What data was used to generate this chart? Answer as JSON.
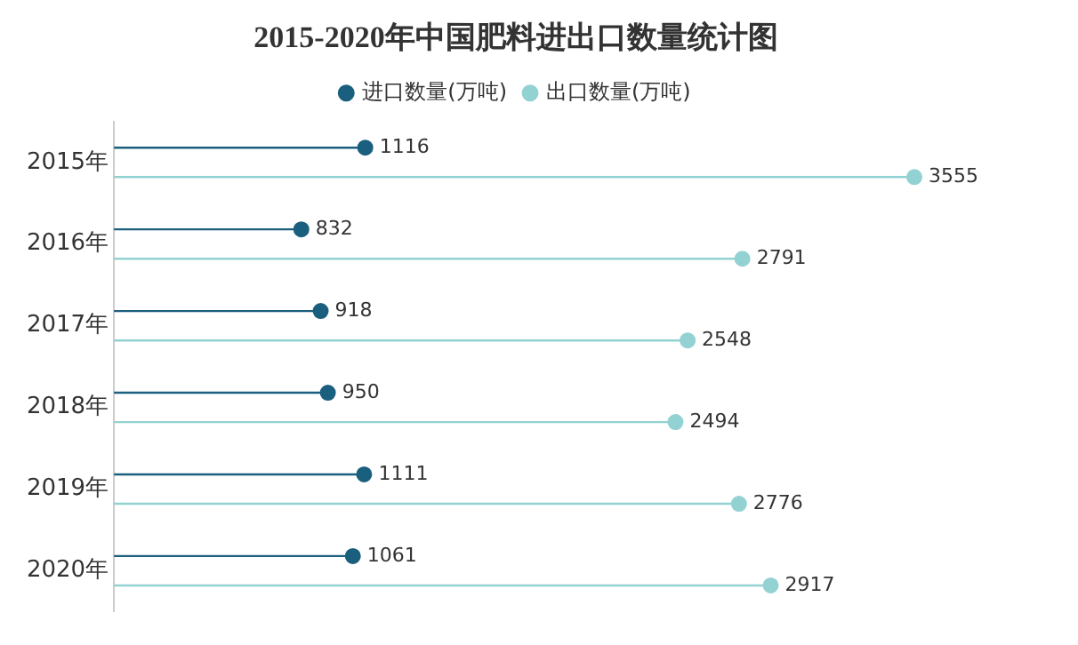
{
  "chart_data": {
    "type": "lollipop",
    "orientation": "horizontal",
    "title": "2015-2020年中国肥料进出口数量统计图",
    "categories": [
      "2015年",
      "2016年",
      "2017年",
      "2018年",
      "2019年",
      "2020年"
    ],
    "series": [
      {
        "name": "进口数量(万吨)",
        "color": "#1b5f7f",
        "values": [
          1116,
          832,
          918,
          950,
          1111,
          1061
        ]
      },
      {
        "name": "出口数量(万吨)",
        "color": "#93d2d2",
        "values": [
          3555,
          2791,
          2548,
          2494,
          2776,
          2917
        ]
      }
    ],
    "data_labels": true,
    "legend": "top",
    "marker": "circle"
  }
}
